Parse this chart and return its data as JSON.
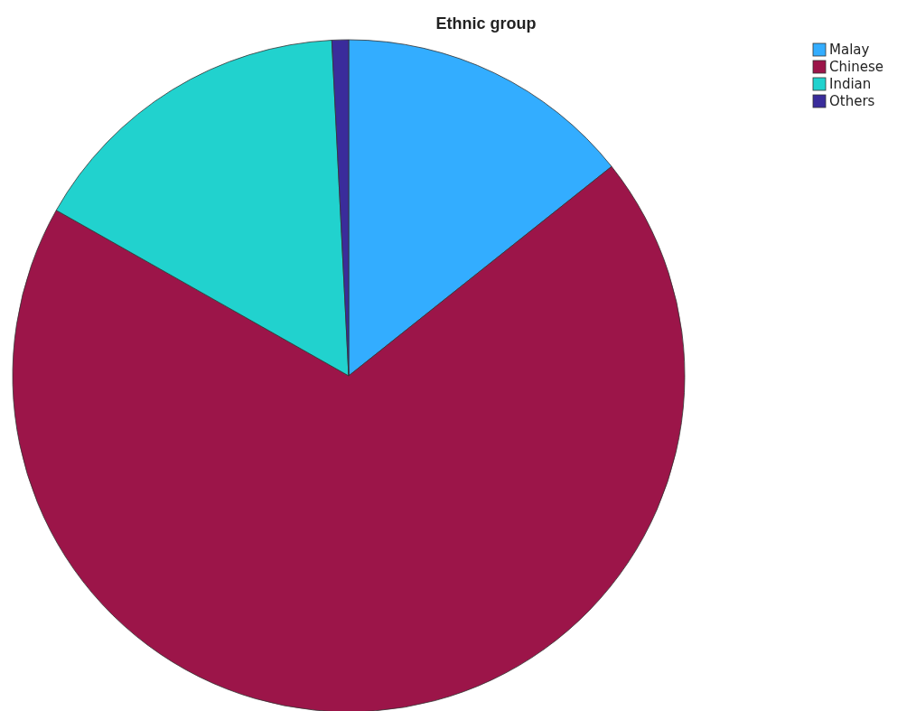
{
  "chart_data": {
    "type": "pie",
    "title": "Ethnic group",
    "categories": [
      "Malay",
      "Chinese",
      "Indian",
      "Others"
    ],
    "values": [
      14.3,
      68.9,
      16.0,
      0.8
    ],
    "colors": [
      "#33adff",
      "#9c1549",
      "#21d2ce",
      "#3a2c9b"
    ],
    "legend": "top right"
  }
}
